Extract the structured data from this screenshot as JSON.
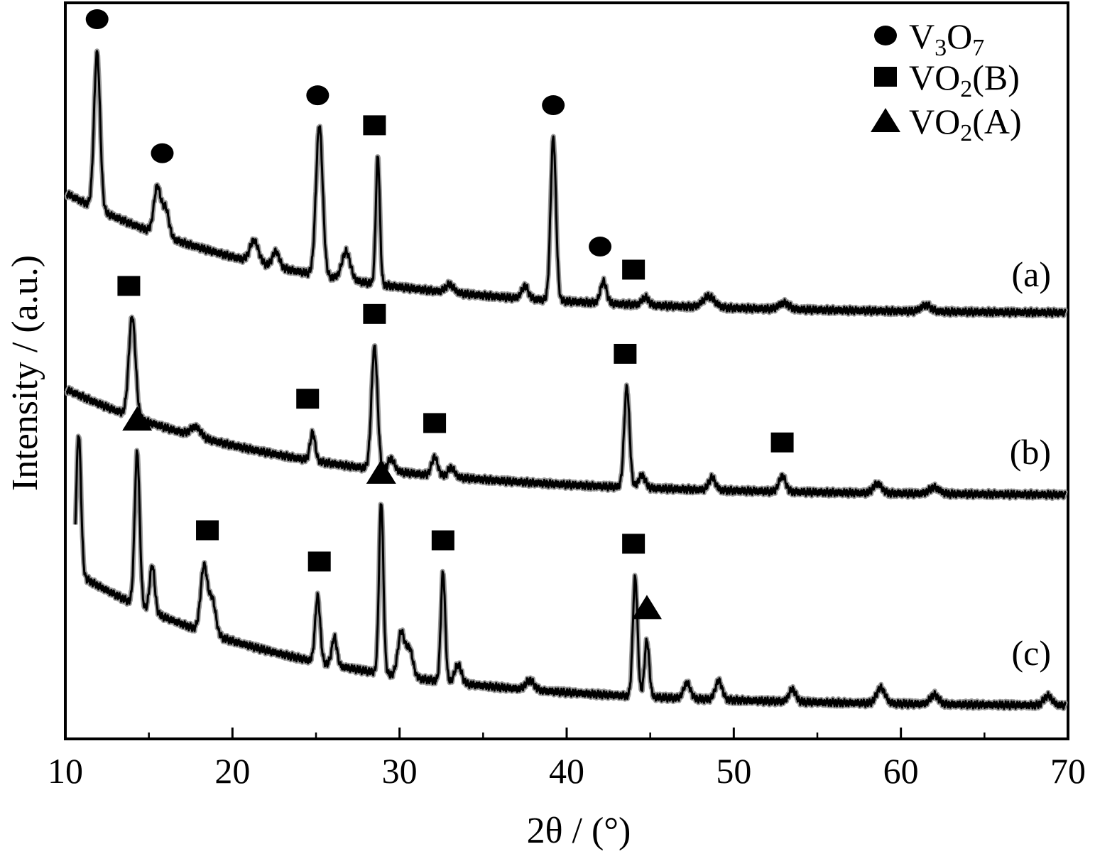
{
  "chart_data": {
    "type": "line",
    "xlabel": "2θ / (°)",
    "ylabel": "Intensity / (a.u.)",
    "xlim": [
      10,
      70
    ],
    "xticks": [
      10,
      20,
      30,
      40,
      50,
      60,
      70
    ],
    "grid": false,
    "legend_position": "top-right",
    "legend": [
      {
        "marker": "circle",
        "base": "V",
        "sub1": "3",
        "mid": "O",
        "sub2": "7",
        "suffix": ""
      },
      {
        "marker": "square",
        "base": "VO",
        "sub1": "2",
        "mid": "",
        "sub2": "",
        "suffix": "(B)"
      },
      {
        "marker": "triangle",
        "base": "VO",
        "sub1": "2",
        "mid": "",
        "sub2": "",
        "suffix": "(A)"
      }
    ],
    "series": [
      {
        "name": "(a)",
        "baseline_start": 92,
        "baseline_end": 15,
        "peaks": [
          [
            11.9,
            100,
            0.18
          ],
          [
            15.5,
            30,
            0.2
          ],
          [
            16.0,
            18,
            0.2
          ],
          [
            21.3,
            14,
            0.25
          ],
          [
            22.6,
            10,
            0.2
          ],
          [
            25.2,
            96,
            0.2
          ],
          [
            26.8,
            18,
            0.25
          ],
          [
            28.7,
            82,
            0.12
          ],
          [
            33.0,
            5,
            0.25
          ],
          [
            37.5,
            8,
            0.2
          ],
          [
            39.2,
            104,
            0.16
          ],
          [
            42.2,
            14,
            0.18
          ],
          [
            44.7,
            5,
            0.2
          ],
          [
            48.5,
            7,
            0.35
          ],
          [
            53.0,
            4,
            0.3
          ],
          [
            61.5,
            4,
            0.3
          ]
        ],
        "markers": [
          {
            "type": "circle",
            "x": 11.9
          },
          {
            "type": "circle",
            "x": 15.8
          },
          {
            "type": "circle",
            "x": 25.1
          },
          {
            "type": "square",
            "x": 28.5
          },
          {
            "type": "circle",
            "x": 39.2
          },
          {
            "type": "circle",
            "x": 42.0
          },
          {
            "type": "square",
            "x": 44.0
          }
        ]
      },
      {
        "name": "(b)",
        "baseline_start": 80,
        "baseline_end": 12,
        "peaks": [
          [
            14.0,
            64,
            0.2
          ],
          [
            17.8,
            6,
            0.3
          ],
          [
            24.8,
            18,
            0.15
          ],
          [
            28.5,
            78,
            0.18
          ],
          [
            29.5,
            8,
            0.2
          ],
          [
            32.1,
            12,
            0.18
          ],
          [
            33.1,
            6,
            0.2
          ],
          [
            43.6,
            64,
            0.16
          ],
          [
            44.5,
            8,
            0.2
          ],
          [
            48.7,
            8,
            0.2
          ],
          [
            52.9,
            10,
            0.2
          ],
          [
            58.6,
            6,
            0.25
          ],
          [
            62.0,
            4,
            0.3
          ]
        ],
        "markers": [
          {
            "type": "square",
            "x": 13.8
          },
          {
            "type": "square",
            "x": 24.5
          },
          {
            "type": "square",
            "x": 28.5
          },
          {
            "type": "square",
            "x": 32.1
          },
          {
            "type": "square",
            "x": 43.5
          },
          {
            "type": "square",
            "x": 52.9
          }
        ]
      },
      {
        "name": "(c)",
        "baseline_start": 96,
        "baseline_end": 10,
        "peaks": [
          [
            10.8,
            90,
            0.14
          ],
          [
            14.3,
            98,
            0.15
          ],
          [
            15.2,
            30,
            0.15
          ],
          [
            18.3,
            42,
            0.2
          ],
          [
            18.8,
            22,
            0.2
          ],
          [
            25.1,
            42,
            0.15
          ],
          [
            26.1,
            18,
            0.15
          ],
          [
            28.9,
            110,
            0.13
          ],
          [
            30.1,
            28,
            0.2
          ],
          [
            30.6,
            18,
            0.2
          ],
          [
            32.6,
            70,
            0.13
          ],
          [
            33.5,
            12,
            0.2
          ],
          [
            37.8,
            6,
            0.25
          ],
          [
            44.1,
            76,
            0.14
          ],
          [
            44.8,
            36,
            0.14
          ],
          [
            47.2,
            10,
            0.2
          ],
          [
            49.1,
            12,
            0.2
          ],
          [
            53.5,
            8,
            0.2
          ],
          [
            58.8,
            10,
            0.25
          ],
          [
            62.0,
            6,
            0.25
          ],
          [
            68.8,
            6,
            0.25
          ]
        ],
        "markers": [
          {
            "type": "triangle",
            "x": 14.3
          },
          {
            "type": "square",
            "x": 18.5
          },
          {
            "type": "square",
            "x": 25.2
          },
          {
            "type": "triangle",
            "x": 28.9
          },
          {
            "type": "square",
            "x": 32.6
          },
          {
            "type": "square",
            "x": 44.0
          },
          {
            "type": "triangle",
            "x": 44.8
          }
        ]
      }
    ]
  }
}
